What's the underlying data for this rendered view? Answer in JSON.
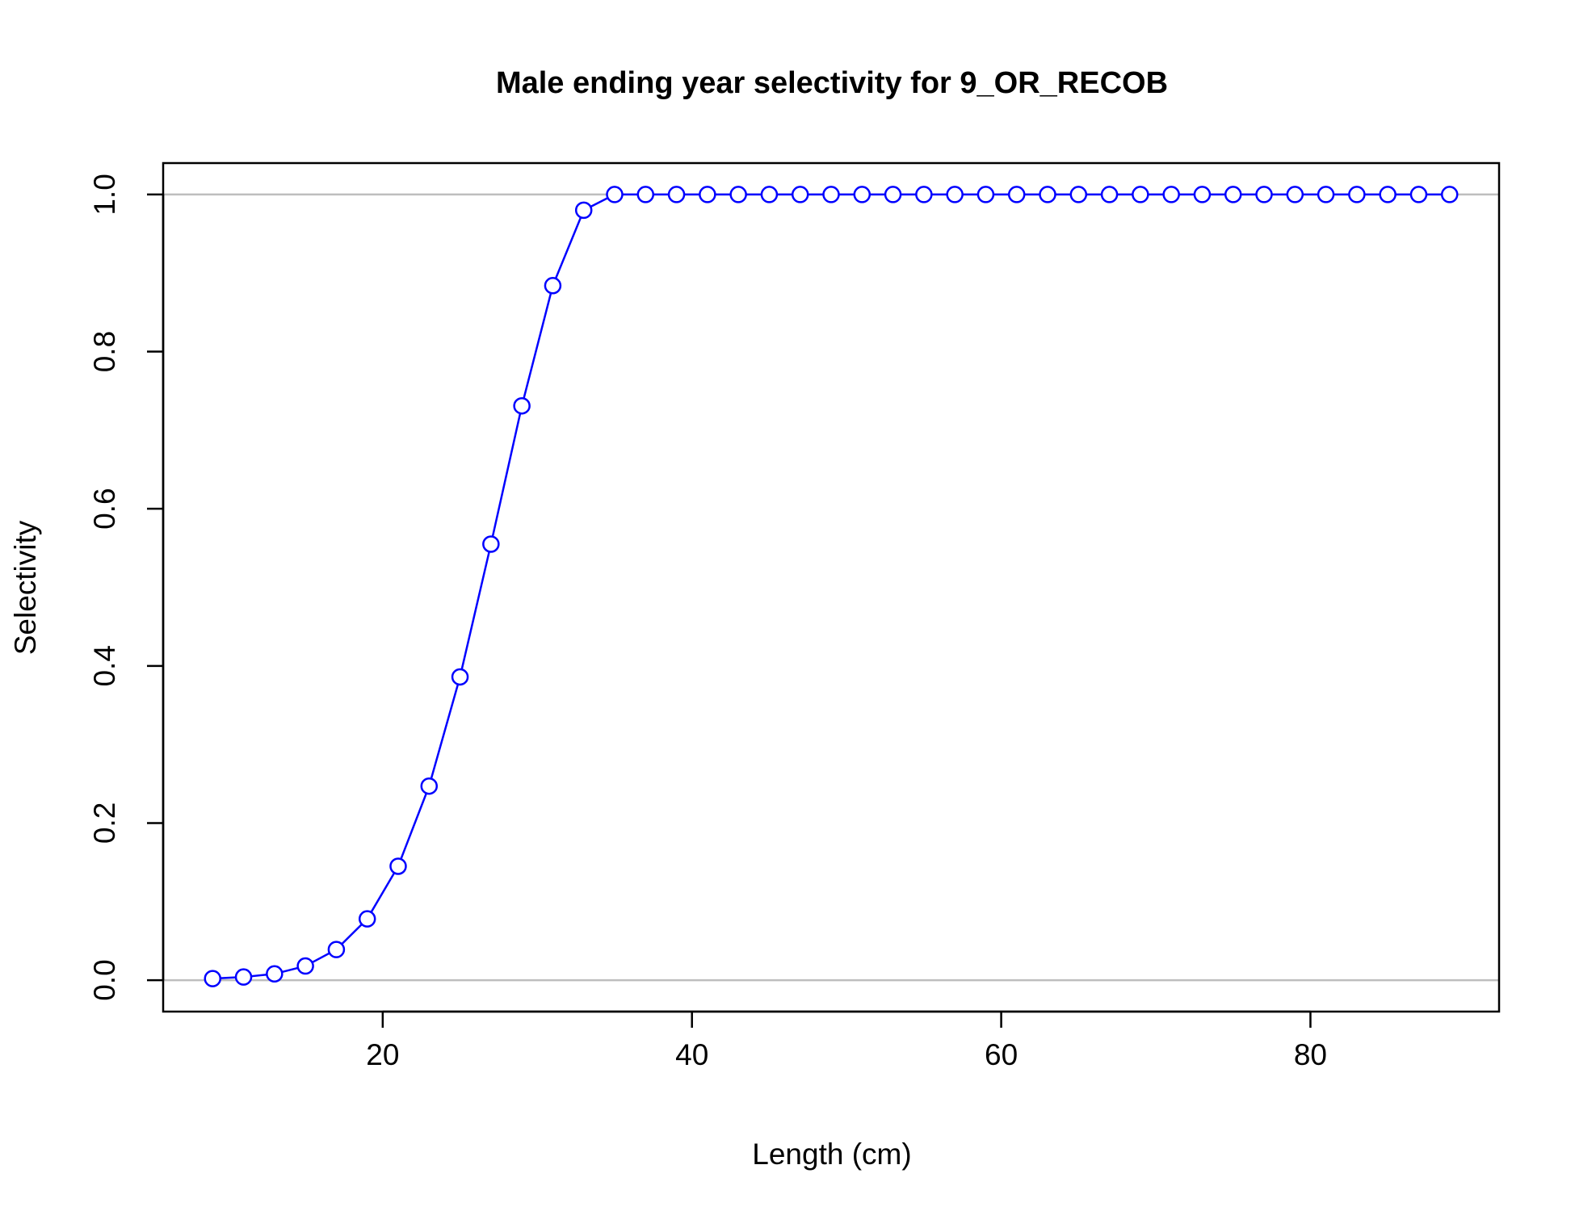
{
  "chart_data": {
    "type": "line",
    "title": "Male ending year selectivity for 9_OR_RECOB",
    "xlabel": "Length (cm)",
    "ylabel": "Selectivity",
    "xlim": [
      5.8,
      92.2
    ],
    "ylim": [
      -0.04,
      1.04
    ],
    "x_ticks": [
      20,
      40,
      60,
      80
    ],
    "x_tick_labels": [
      "20",
      "40",
      "60",
      "80"
    ],
    "y_ticks": [
      0.0,
      0.2,
      0.4,
      0.6,
      0.8,
      1.0
    ],
    "y_tick_labels": [
      "0.0",
      "0.2",
      "0.4",
      "0.6",
      "0.8",
      "1.0"
    ],
    "reference_lines": [
      0,
      1
    ],
    "grid": false,
    "legend": "none",
    "colors": {
      "series": "#0000ff",
      "reference": "#bebebe",
      "axes": "#000000"
    },
    "series": [
      {
        "marker": "open-circle",
        "x": [
          9,
          11,
          13,
          15,
          17,
          19,
          21,
          23,
          25,
          27,
          29,
          31,
          33,
          35,
          37,
          39,
          41,
          43,
          45,
          47,
          49,
          51,
          53,
          55,
          57,
          59,
          61,
          63,
          65,
          67,
          69,
          71,
          73,
          75,
          77,
          79,
          81,
          83,
          85,
          87,
          89
        ],
        "values": [
          0.002,
          0.004,
          0.008,
          0.018,
          0.039,
          0.078,
          0.145,
          0.247,
          0.386,
          0.555,
          0.731,
          0.884,
          0.98,
          1.0,
          1.0,
          1.0,
          1.0,
          1.0,
          1.0,
          1.0,
          1.0,
          1.0,
          1.0,
          1.0,
          1.0,
          1.0,
          1.0,
          1.0,
          1.0,
          1.0,
          1.0,
          1.0,
          1.0,
          1.0,
          1.0,
          1.0,
          1.0,
          1.0,
          1.0,
          1.0,
          1.0
        ]
      }
    ]
  }
}
